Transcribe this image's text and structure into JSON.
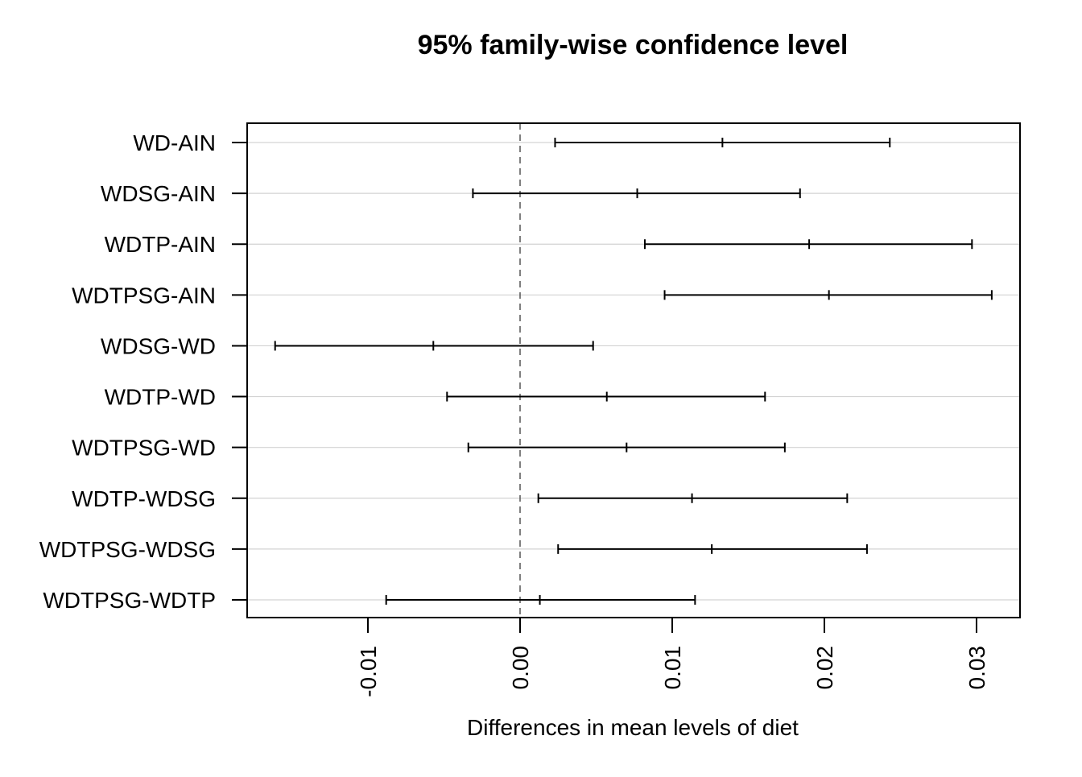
{
  "chart_data": {
    "type": "interval",
    "title": "95% family-wise confidence level",
    "xlabel": "Differences in mean levels of diet",
    "ylabel": "",
    "xlim": [
      -0.018,
      0.033
    ],
    "xticks": [
      -0.01,
      0.0,
      0.01,
      0.02,
      0.03
    ],
    "xtick_labels": [
      "-0.01",
      "0.00",
      "0.01",
      "0.02",
      "0.03"
    ],
    "reference_line": 0.0,
    "grid": "horizontal",
    "categories": [
      "WD-AIN",
      "WDSG-AIN",
      "WDTP-AIN",
      "WDTPSG-AIN",
      "WDSG-WD",
      "WDTP-WD",
      "WDTPSG-WD",
      "WDTP-WDSG",
      "WDTPSG-WDSG",
      "WDTPSG-WDTP"
    ],
    "lower": [
      0.0023,
      -0.0031,
      0.0082,
      0.0095,
      -0.0161,
      -0.0048,
      -0.0034,
      0.0012,
      0.0025,
      -0.0088
    ],
    "estimate": [
      0.0133,
      0.0077,
      0.019,
      0.0203,
      -0.0057,
      0.0057,
      0.007,
      0.0113,
      0.0126,
      0.0013
    ],
    "upper": [
      0.0243,
      0.0184,
      0.0297,
      0.031,
      0.0048,
      0.0161,
      0.0174,
      0.0215,
      0.0228,
      0.0115
    ]
  },
  "colors": {
    "line": "#000000",
    "grid": "#d3d3d3",
    "reference": "#555555"
  }
}
